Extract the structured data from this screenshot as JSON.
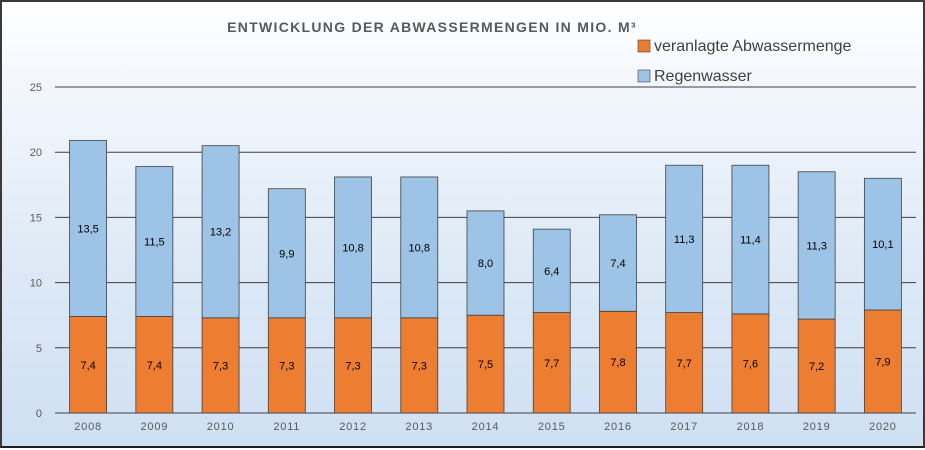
{
  "chart_data": {
    "type": "bar",
    "stacked": true,
    "title": "ENTWICKLUNG DER ABWASSERMENGEN IN MIO. M³",
    "categories": [
      "2008",
      "2009",
      "2010",
      "2011",
      "2012",
      "2013",
      "2014",
      "2015",
      "2016",
      "2017",
      "2018",
      "2019",
      "2020"
    ],
    "series": [
      {
        "name": "veranlagte Abwassermenge",
        "color": "#ed7d31",
        "values": [
          7.4,
          7.4,
          7.3,
          7.3,
          7.3,
          7.3,
          7.5,
          7.7,
          7.8,
          7.7,
          7.6,
          7.2,
          7.9
        ],
        "labels": [
          "7,4",
          "7,4",
          "7,3",
          "7,3",
          "7,3",
          "7,3",
          "7,5",
          "7,7",
          "7,8",
          "7,7",
          "7,6",
          "7,2",
          "7,9"
        ]
      },
      {
        "name": "Regenwasser",
        "color": "#9dc3e6",
        "values": [
          13.5,
          11.5,
          13.2,
          9.9,
          10.8,
          10.8,
          8.0,
          6.4,
          7.4,
          11.3,
          11.4,
          11.3,
          10.1
        ],
        "labels": [
          "13,5",
          "11,5",
          "13,2",
          "9,9",
          "10,8",
          "10,8",
          "8,0",
          "6,4",
          "7,4",
          "11,3",
          "11,4",
          "11,3",
          "10,1"
        ]
      }
    ],
    "ylim": [
      0,
      25
    ],
    "yticks": [
      0,
      5,
      10,
      15,
      20,
      25
    ],
    "ytick_labels": [
      "0",
      "5",
      "10",
      "15",
      "20",
      "25"
    ],
    "grid": true,
    "legend_position": "top-right",
    "xlabel": "",
    "ylabel": ""
  }
}
